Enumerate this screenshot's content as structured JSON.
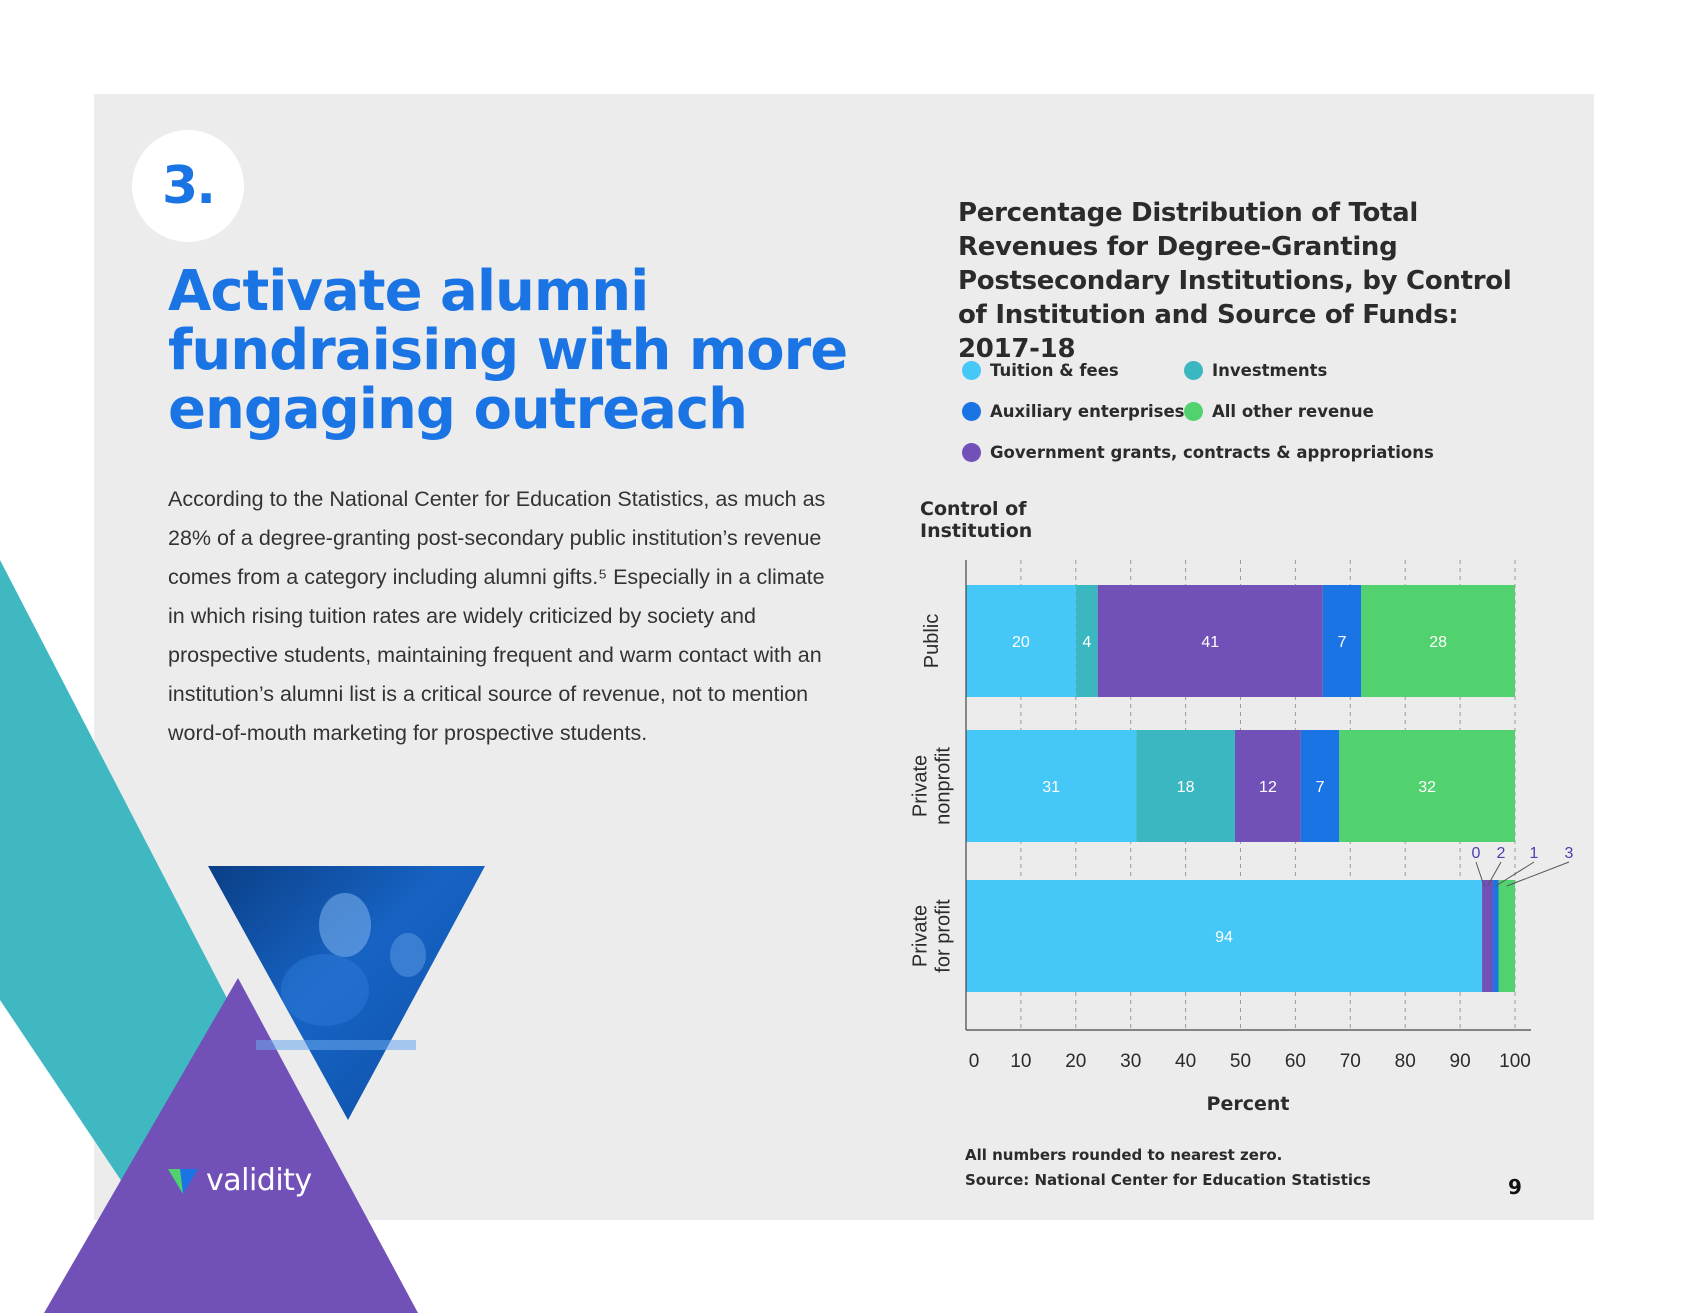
{
  "section": {
    "number": "3."
  },
  "headline": "Activate alumni fundraising with more engaging outreach",
  "body_paragraph": "According to the National Center for Education Statistics, as much as 28% of a degree-granting post-secondary public institution’s revenue comes from a category including alumni gifts.⁵ Especially in a climate in which rising tuition rates are widely criticized by society and prospective students, maintaining frequent and warm contact with an institution’s alumni list is a critical source of revenue, not to mention word-of-mouth marketing for prospective students.",
  "logo": {
    "text": "validity"
  },
  "page_number": "9",
  "footnotes": {
    "rounding": "All numbers rounded to nearest zero.",
    "source": "Source: National Center for Education Statistics"
  },
  "colors": {
    "tuition": "#45c7f7",
    "investments": "#3ab7c1",
    "government": "#7151b8",
    "auxiliary": "#1b74e4",
    "other": "#51d26f",
    "headline_blue": "#1b74e4",
    "deco_teal": "#3fb8c2",
    "deco_purple": "#7151b8"
  },
  "chart_data": {
    "type": "bar",
    "orientation": "horizontal",
    "stacked": true,
    "title": "Percentage Distribution of Total Revenues for Degree-Granting Postsecondary Institutions, by Control of Institution and Source of Funds: 2017-18",
    "ylabel": "Control of Institution",
    "xlabel": "Percent",
    "xlim": [
      0,
      100
    ],
    "xticks": [
      "0",
      "10",
      "20",
      "30",
      "40",
      "50",
      "60",
      "70",
      "80",
      "90",
      "100"
    ],
    "grid": true,
    "legend_placement": "top",
    "legend": [
      {
        "key": "tuition",
        "label": "Tuition & fees"
      },
      {
        "key": "investments",
        "label": "Investments"
      },
      {
        "key": "auxiliary",
        "label": "Auxiliary enterprises"
      },
      {
        "key": "other",
        "label": "All other revenue"
      },
      {
        "key": "government",
        "label": "Government grants, contracts & appropriations"
      }
    ],
    "categories": [
      {
        "lines": [
          "Public"
        ]
      },
      {
        "lines": [
          "Private",
          "nonprofit"
        ]
      },
      {
        "lines": [
          "Private",
          "for profit"
        ]
      }
    ],
    "segment_order": [
      "tuition",
      "investments",
      "government",
      "auxiliary",
      "other"
    ],
    "series": [
      {
        "key": "tuition",
        "values": [
          20,
          31,
          94
        ]
      },
      {
        "key": "investments",
        "values": [
          4,
          18,
          0
        ]
      },
      {
        "key": "government",
        "values": [
          41,
          12,
          2
        ]
      },
      {
        "key": "auxiliary",
        "values": [
          7,
          7,
          1
        ]
      },
      {
        "key": "other",
        "values": [
          28,
          32,
          3
        ]
      }
    ]
  }
}
